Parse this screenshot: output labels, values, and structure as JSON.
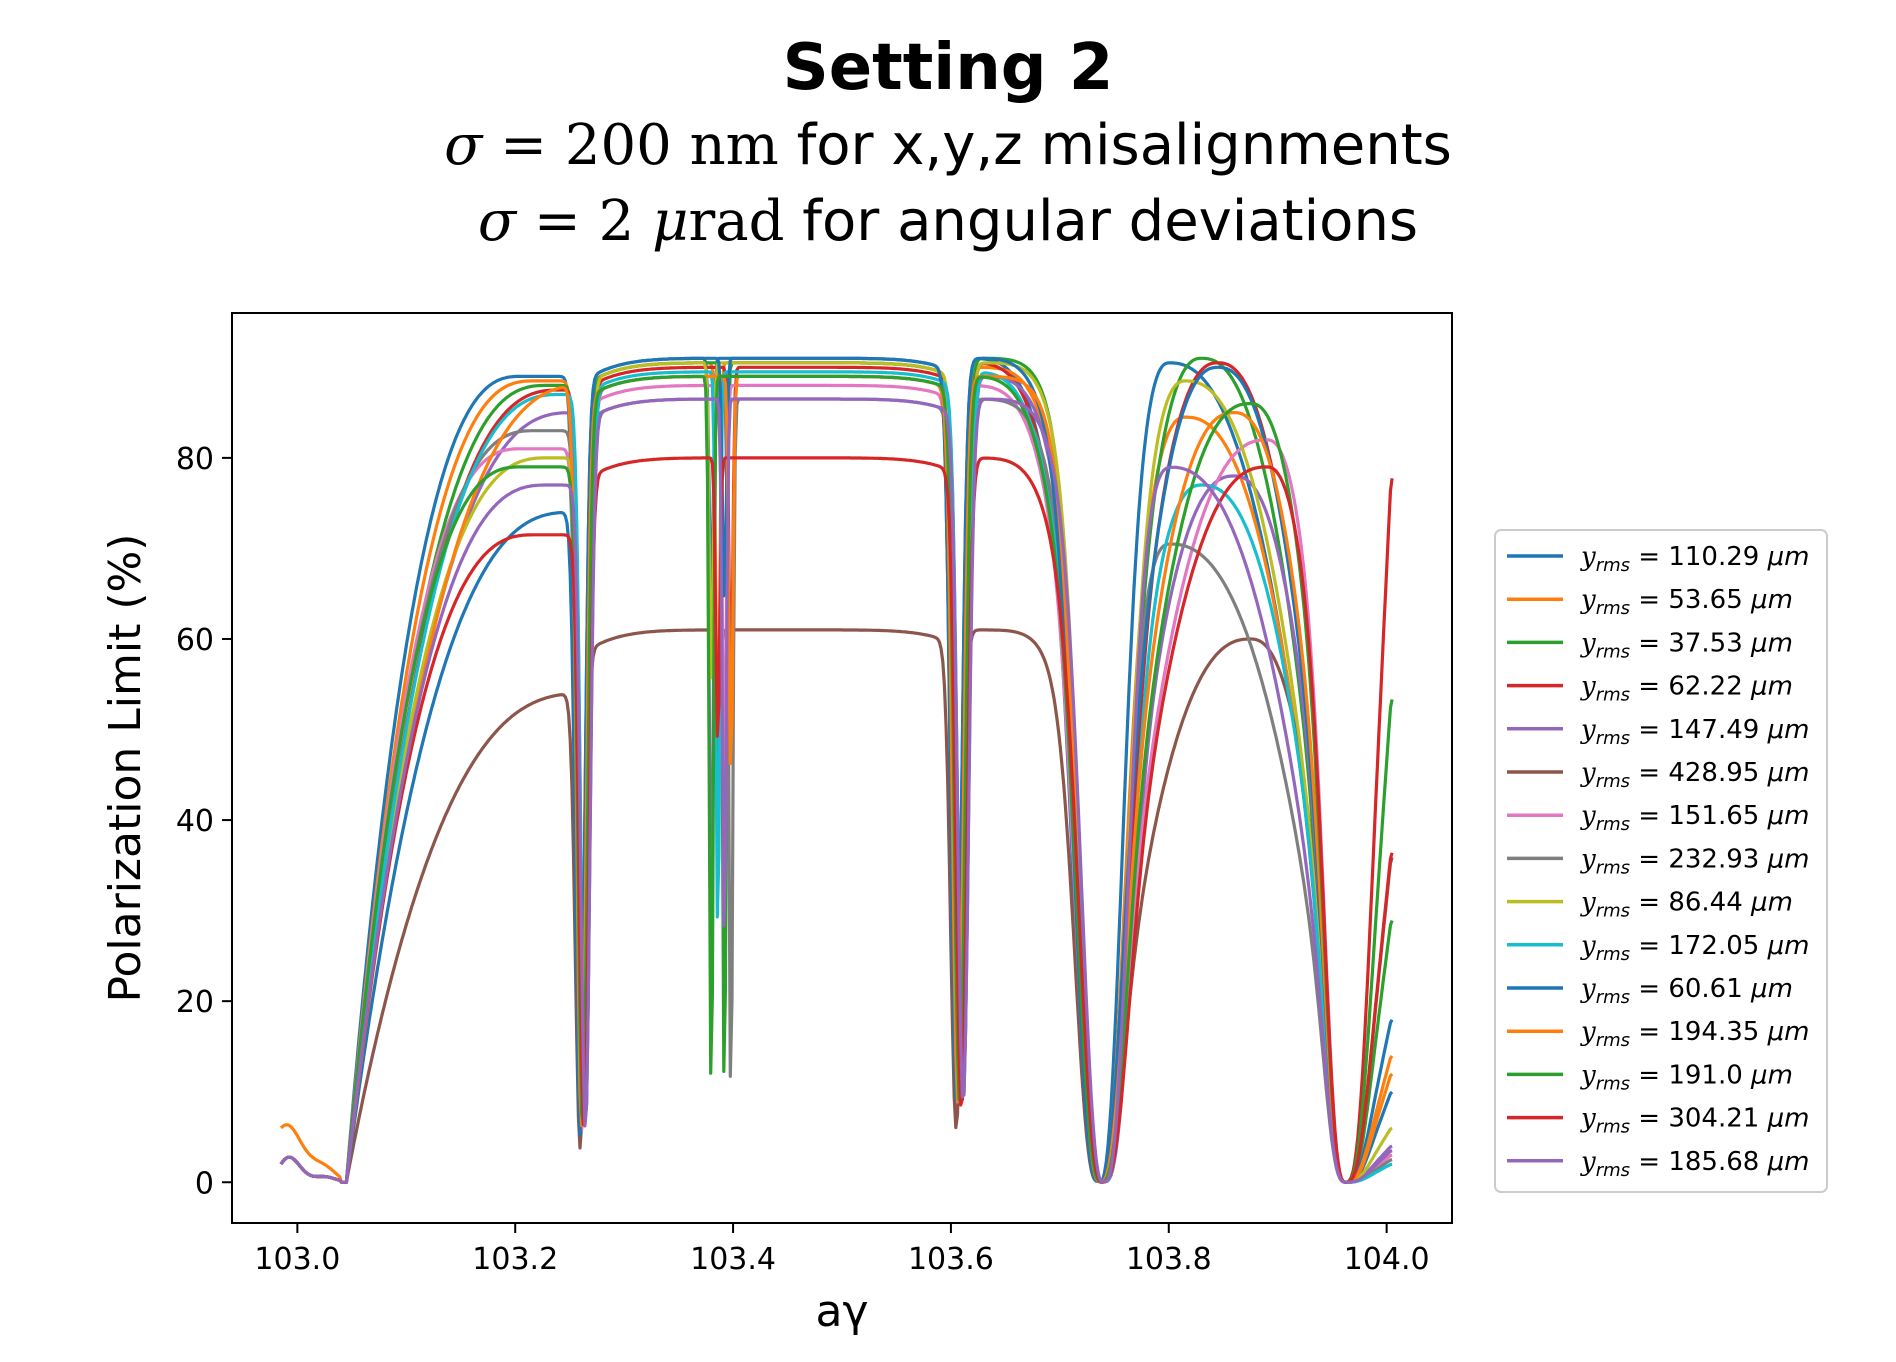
{
  "title": {
    "line1": "Setting 2",
    "line2_sym": "σ",
    "line2_eq": " = 200 ",
    "line2_unit": "nm",
    "line2_text": " for x,y,z misalignments",
    "line3_sym": "σ",
    "line3_eq": " = 2 ",
    "line3_unit_mu": "μ",
    "line3_unit": "rad",
    "line3_text": " for angular deviations"
  },
  "chart_data": {
    "type": "line",
    "xlabel": "aγ",
    "ylabel": "Polarization Limit  (%)",
    "xlim": [
      102.94,
      104.06
    ],
    "ylim": [
      -4.5,
      96
    ],
    "xticks": [
      "103.0",
      "103.2",
      "103.4",
      "103.6",
      "103.8",
      "104.0"
    ],
    "yticks": [
      "0",
      "20",
      "40",
      "60",
      "80"
    ],
    "grid": false,
    "legend_position": "right",
    "series": [
      {
        "name": "y_rms = 110.29 μm",
        "legend_label": "110.29",
        "color": "#1f77b4",
        "peaks": [
          89.0,
          91.0,
          91.0,
          90.5
        ],
        "end": 10.0
      },
      {
        "name": "y_rms = 53.65 μm",
        "legend_label": "53.65",
        "color": "#ff7f0e",
        "peaks": [
          88.5,
          90.5,
          90.0,
          84.5
        ],
        "end": 12.0
      },
      {
        "name": "y_rms = 37.53 μm",
        "legend_label": "37.53",
        "color": "#2ca02c",
        "peaks": [
          88.0,
          90.5,
          91.0,
          91.0
        ],
        "end": 29.0
      },
      {
        "name": "y_rms = 62.22 μm",
        "legend_label": "62.22",
        "color": "#d62728",
        "peaks": [
          87.5,
          90.0,
          90.5,
          90.5
        ],
        "end": 78.0
      },
      {
        "name": "y_rms = 147.49 μm",
        "legend_label": "147.49",
        "color": "#9467bd",
        "peaks": [
          85.0,
          89.0,
          89.0,
          78.0
        ],
        "end": 4.0
      },
      {
        "name": "y_rms = 428.95 μm",
        "legend_label": "428.95",
        "color": "#8c564b",
        "peaks": [
          54.0,
          61.0,
          61.0,
          60.0
        ],
        "end": 36.0
      },
      {
        "name": "y_rms = 151.65 μm",
        "legend_label": "151.65",
        "color": "#e377c2",
        "peaks": [
          81.0,
          88.0,
          88.0,
          82.0
        ],
        "end": 3.0
      },
      {
        "name": "y_rms = 232.93 μm",
        "legend_label": "232.93",
        "color": "#7f7f7f",
        "peaks": [
          83.0,
          86.5,
          86.5,
          70.5
        ],
        "end": 2.5
      },
      {
        "name": "y_rms = 86.44 μm",
        "legend_label": "86.44",
        "color": "#bcbd22",
        "peaks": [
          80.0,
          90.5,
          90.5,
          88.5
        ],
        "end": 6.0
      },
      {
        "name": "y_rms = 172.05 μm",
        "legend_label": "172.05",
        "color": "#17becf",
        "peaks": [
          87.0,
          89.5,
          89.5,
          77.0
        ],
        "end": 2.0
      },
      {
        "name": "y_rms = 60.61 μm",
        "legend_label": "60.61",
        "color": "#1f77b4",
        "peaks": [
          74.0,
          91.0,
          91.0,
          90.0
        ],
        "end": 18.0
      },
      {
        "name": "y_rms = 194.35 μm",
        "legend_label": "194.35",
        "color": "#ff7f0e",
        "peaks": [
          88.0,
          89.0,
          89.0,
          85.0
        ],
        "end": 14.0
      },
      {
        "name": "y_rms = 191.0 μm",
        "legend_label": "191.0",
        "color": "#2ca02c",
        "peaks": [
          79.0,
          89.0,
          89.0,
          86.0
        ],
        "end": 53.5
      },
      {
        "name": "y_rms = 304.21 μm",
        "legend_label": "304.21",
        "color": "#d62728",
        "peaks": [
          71.5,
          80.0,
          80.0,
          79.0
        ],
        "end": 36.5
      },
      {
        "name": "y_rms = 185.68 μm",
        "legend_label": "185.68",
        "color": "#9467bd",
        "peaks": [
          77.0,
          86.5,
          86.5,
          79.0
        ],
        "end": 3.5
      }
    ]
  }
}
